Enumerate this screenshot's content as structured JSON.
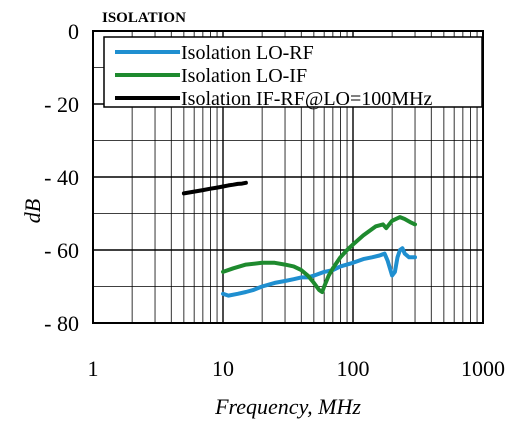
{
  "chart_data": {
    "type": "line",
    "title": "ISOLATION",
    "xlabel": "Frequency, MHz",
    "ylabel": "dB",
    "x_scale": "log",
    "xlim": [
      1,
      1000
    ],
    "ylim": [
      -80,
      0
    ],
    "x_ticks": [
      1,
      10,
      100,
      1000
    ],
    "x_tick_labels": [
      "1",
      "10",
      "100",
      "1000"
    ],
    "y_ticks": [
      0,
      -20,
      -40,
      -60,
      -80
    ],
    "y_tick_labels": [
      "0",
      "- 20",
      "- 40",
      "- 60",
      "- 80"
    ],
    "grid": true,
    "legend_position": "top-right",
    "series": [
      {
        "name": "Isolation LO-RF",
        "color": "#1f8fd0",
        "x": [
          10,
          11,
          13,
          15,
          17,
          20,
          25,
          30,
          35,
          40,
          45,
          50,
          60,
          70,
          80,
          100,
          120,
          140,
          160,
          175,
          185,
          200,
          210,
          220,
          230,
          240,
          250,
          270,
          300
        ],
        "y": [
          -72,
          -72.5,
          -72,
          -71.5,
          -71,
          -70,
          -69,
          -68.5,
          -68,
          -67.5,
          -67.5,
          -67,
          -66,
          -65.5,
          -64.5,
          -63.5,
          -62.5,
          -62,
          -61.5,
          -61,
          -63,
          -67,
          -66,
          -62,
          -60,
          -59.5,
          -61,
          -62,
          -62
        ]
      },
      {
        "name": "Isolation LO-IF",
        "color": "#1e8a2e",
        "x": [
          10,
          12,
          15,
          20,
          25,
          30,
          35,
          40,
          45,
          50,
          55,
          58,
          60,
          65,
          70,
          80,
          90,
          100,
          120,
          150,
          170,
          180,
          200,
          230,
          250,
          280,
          300
        ],
        "y": [
          -66,
          -65,
          -64,
          -63.5,
          -63.5,
          -64,
          -64.5,
          -65.5,
          -67,
          -69,
          -71,
          -71.5,
          -70,
          -67,
          -65,
          -62,
          -60,
          -58.5,
          -56,
          -53.5,
          -53,
          -54,
          -52,
          -51,
          -51.5,
          -52.5,
          -53
        ]
      },
      {
        "name": "Isolation IF-RF@LO=100MHz",
        "color": "#000000",
        "x": [
          5,
          6,
          7,
          8,
          9,
          10,
          11,
          12,
          13,
          14,
          15
        ],
        "y": [
          -44.5,
          -44,
          -43.6,
          -43.2,
          -42.9,
          -42.6,
          -42.3,
          -42.1,
          -41.9,
          -41.8,
          -41.6
        ]
      }
    ]
  }
}
